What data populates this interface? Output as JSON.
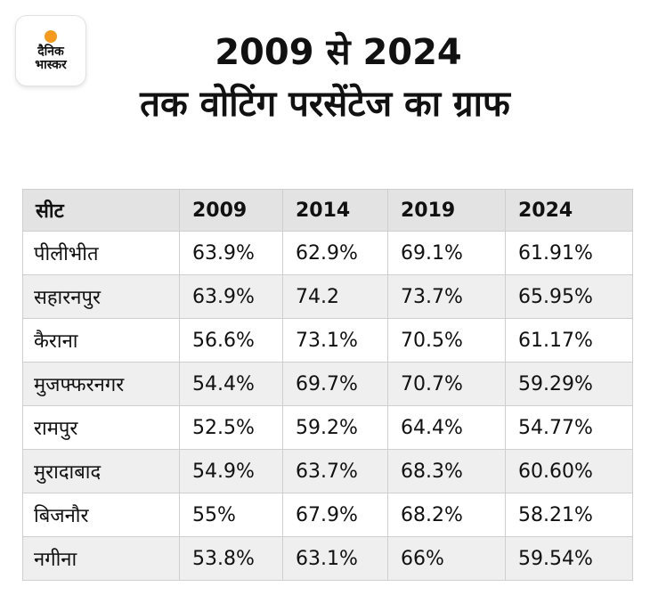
{
  "logo": {
    "line1": "दैनिक",
    "line2": "भास्कर"
  },
  "title": {
    "line1": "2009 से 2024",
    "line2": "तक वोटिंग परसेंटेज का ग्राफ"
  },
  "chart_data": {
    "type": "table",
    "columns": [
      "सीट",
      "2009",
      "2014",
      "2019",
      "2024"
    ],
    "rows": [
      [
        "पीलीभीत",
        "63.9%",
        "62.9%",
        "69.1%",
        "61.91%"
      ],
      [
        "सहारनपुर",
        "63.9%",
        "74.2",
        "73.7%",
        "65.95%"
      ],
      [
        "कैराना",
        "56.6%",
        "73.1%",
        "70.5%",
        "61.17%"
      ],
      [
        "मुजफ्फरनगर",
        "54.4%",
        "69.7%",
        "70.7%",
        "59.29%"
      ],
      [
        "रामपुर",
        "52.5%",
        "59.2%",
        "64.4%",
        "54.77%"
      ],
      [
        "मुरादाबाद",
        "54.9%",
        "63.7%",
        "68.3%",
        "60.60%"
      ],
      [
        "बिजनौर",
        "55%",
        "67.9%",
        "68.2%",
        "58.21%"
      ],
      [
        "नगीना",
        "53.8%",
        "63.1%",
        "66%",
        "59.54%"
      ]
    ]
  },
  "colors": {
    "header_bg": "#e3e3e3",
    "stripe_bg": "#efefef",
    "logo_sun": "#f59a1c"
  }
}
